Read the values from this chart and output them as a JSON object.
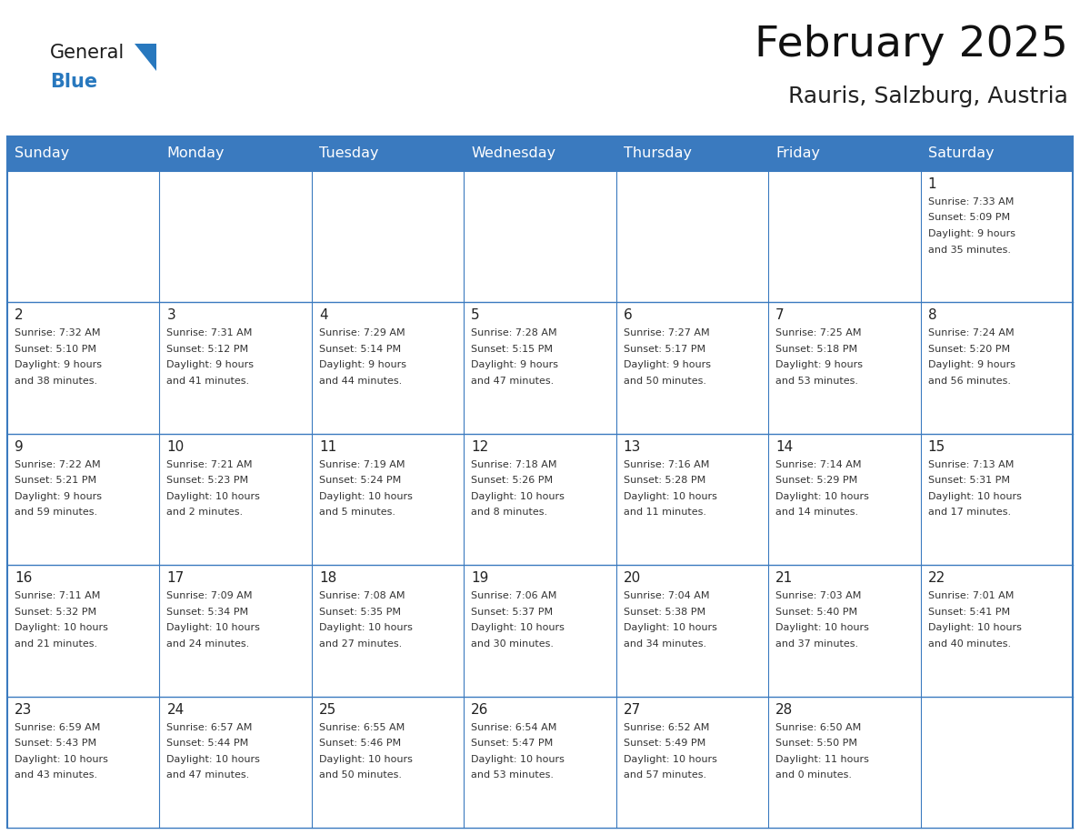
{
  "title": "February 2025",
  "subtitle": "Rauris, Salzburg, Austria",
  "header_bg": "#3a7abf",
  "header_text": "#ffffff",
  "border_color": "#3a7abf",
  "cell_bg_odd": "#f0f4f8",
  "cell_bg_even": "#ffffff",
  "day_names": [
    "Sunday",
    "Monday",
    "Tuesday",
    "Wednesday",
    "Thursday",
    "Friday",
    "Saturday"
  ],
  "title_fontsize": 34,
  "subtitle_fontsize": 18,
  "header_fontsize": 11.5,
  "day_num_fontsize": 11,
  "cell_fontsize": 8.0,
  "logo_color_general": "#1a1a1a",
  "logo_color_blue": "#2878be",
  "logo_triangle_color": "#2878be",
  "days": [
    {
      "day": 1,
      "col": 6,
      "row": 0,
      "sunrise": "7:33 AM",
      "sunset": "5:09 PM",
      "daylight_hours": 9,
      "daylight_minutes": 35
    },
    {
      "day": 2,
      "col": 0,
      "row": 1,
      "sunrise": "7:32 AM",
      "sunset": "5:10 PM",
      "daylight_hours": 9,
      "daylight_minutes": 38
    },
    {
      "day": 3,
      "col": 1,
      "row": 1,
      "sunrise": "7:31 AM",
      "sunset": "5:12 PM",
      "daylight_hours": 9,
      "daylight_minutes": 41
    },
    {
      "day": 4,
      "col": 2,
      "row": 1,
      "sunrise": "7:29 AM",
      "sunset": "5:14 PM",
      "daylight_hours": 9,
      "daylight_minutes": 44
    },
    {
      "day": 5,
      "col": 3,
      "row": 1,
      "sunrise": "7:28 AM",
      "sunset": "5:15 PM",
      "daylight_hours": 9,
      "daylight_minutes": 47
    },
    {
      "day": 6,
      "col": 4,
      "row": 1,
      "sunrise": "7:27 AM",
      "sunset": "5:17 PM",
      "daylight_hours": 9,
      "daylight_minutes": 50
    },
    {
      "day": 7,
      "col": 5,
      "row": 1,
      "sunrise": "7:25 AM",
      "sunset": "5:18 PM",
      "daylight_hours": 9,
      "daylight_minutes": 53
    },
    {
      "day": 8,
      "col": 6,
      "row": 1,
      "sunrise": "7:24 AM",
      "sunset": "5:20 PM",
      "daylight_hours": 9,
      "daylight_minutes": 56
    },
    {
      "day": 9,
      "col": 0,
      "row": 2,
      "sunrise": "7:22 AM",
      "sunset": "5:21 PM",
      "daylight_hours": 9,
      "daylight_minutes": 59
    },
    {
      "day": 10,
      "col": 1,
      "row": 2,
      "sunrise": "7:21 AM",
      "sunset": "5:23 PM",
      "daylight_hours": 10,
      "daylight_minutes": 2
    },
    {
      "day": 11,
      "col": 2,
      "row": 2,
      "sunrise": "7:19 AM",
      "sunset": "5:24 PM",
      "daylight_hours": 10,
      "daylight_minutes": 5
    },
    {
      "day": 12,
      "col": 3,
      "row": 2,
      "sunrise": "7:18 AM",
      "sunset": "5:26 PM",
      "daylight_hours": 10,
      "daylight_minutes": 8
    },
    {
      "day": 13,
      "col": 4,
      "row": 2,
      "sunrise": "7:16 AM",
      "sunset": "5:28 PM",
      "daylight_hours": 10,
      "daylight_minutes": 11
    },
    {
      "day": 14,
      "col": 5,
      "row": 2,
      "sunrise": "7:14 AM",
      "sunset": "5:29 PM",
      "daylight_hours": 10,
      "daylight_minutes": 14
    },
    {
      "day": 15,
      "col": 6,
      "row": 2,
      "sunrise": "7:13 AM",
      "sunset": "5:31 PM",
      "daylight_hours": 10,
      "daylight_minutes": 17
    },
    {
      "day": 16,
      "col": 0,
      "row": 3,
      "sunrise": "7:11 AM",
      "sunset": "5:32 PM",
      "daylight_hours": 10,
      "daylight_minutes": 21
    },
    {
      "day": 17,
      "col": 1,
      "row": 3,
      "sunrise": "7:09 AM",
      "sunset": "5:34 PM",
      "daylight_hours": 10,
      "daylight_minutes": 24
    },
    {
      "day": 18,
      "col": 2,
      "row": 3,
      "sunrise": "7:08 AM",
      "sunset": "5:35 PM",
      "daylight_hours": 10,
      "daylight_minutes": 27
    },
    {
      "day": 19,
      "col": 3,
      "row": 3,
      "sunrise": "7:06 AM",
      "sunset": "5:37 PM",
      "daylight_hours": 10,
      "daylight_minutes": 30
    },
    {
      "day": 20,
      "col": 4,
      "row": 3,
      "sunrise": "7:04 AM",
      "sunset": "5:38 PM",
      "daylight_hours": 10,
      "daylight_minutes": 34
    },
    {
      "day": 21,
      "col": 5,
      "row": 3,
      "sunrise": "7:03 AM",
      "sunset": "5:40 PM",
      "daylight_hours": 10,
      "daylight_minutes": 37
    },
    {
      "day": 22,
      "col": 6,
      "row": 3,
      "sunrise": "7:01 AM",
      "sunset": "5:41 PM",
      "daylight_hours": 10,
      "daylight_minutes": 40
    },
    {
      "day": 23,
      "col": 0,
      "row": 4,
      "sunrise": "6:59 AM",
      "sunset": "5:43 PM",
      "daylight_hours": 10,
      "daylight_minutes": 43
    },
    {
      "day": 24,
      "col": 1,
      "row": 4,
      "sunrise": "6:57 AM",
      "sunset": "5:44 PM",
      "daylight_hours": 10,
      "daylight_minutes": 47
    },
    {
      "day": 25,
      "col": 2,
      "row": 4,
      "sunrise": "6:55 AM",
      "sunset": "5:46 PM",
      "daylight_hours": 10,
      "daylight_minutes": 50
    },
    {
      "day": 26,
      "col": 3,
      "row": 4,
      "sunrise": "6:54 AM",
      "sunset": "5:47 PM",
      "daylight_hours": 10,
      "daylight_minutes": 53
    },
    {
      "day": 27,
      "col": 4,
      "row": 4,
      "sunrise": "6:52 AM",
      "sunset": "5:49 PM",
      "daylight_hours": 10,
      "daylight_minutes": 57
    },
    {
      "day": 28,
      "col": 5,
      "row": 4,
      "sunrise": "6:50 AM",
      "sunset": "5:50 PM",
      "daylight_hours": 11,
      "daylight_minutes": 0
    }
  ]
}
